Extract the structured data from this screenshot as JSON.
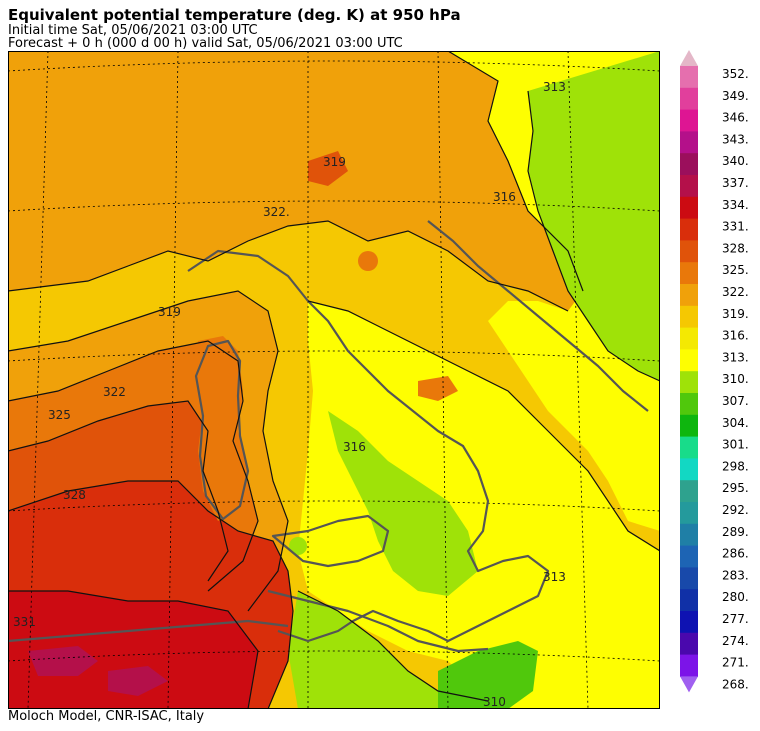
{
  "header": {
    "title": "Equivalent potential temperature (deg. K) at 950 hPa",
    "initial_time": "Initial time  Sat, 05/06/2021  03:00 UTC",
    "forecast": "Forecast  +   0 h  (000 d 00 h)  valid Sat, 05/06/2021 03:00 UTC"
  },
  "footer": {
    "credit": "Moloch Model, CNR-ISAC, Italy"
  },
  "colorbar": {
    "levels": [
      "352.",
      "349.",
      "346.",
      "343.",
      "340.",
      "337.",
      "334.",
      "331.",
      "328.",
      "325.",
      "322.",
      "319.",
      "316.",
      "313.",
      "310.",
      "307.",
      "304.",
      "301.",
      "298.",
      "295.",
      "292.",
      "289.",
      "286.",
      "283.",
      "280.",
      "277.",
      "274.",
      "271.",
      "268."
    ],
    "colors": [
      "#e4b7c8",
      "#e56fae",
      "#e13f9c",
      "#de1593",
      "#b4108a",
      "#9b0f5c",
      "#b4104a",
      "#cc0b12",
      "#d92e0b",
      "#e0530a",
      "#e9780a",
      "#f0a10a",
      "#f5c802",
      "#f4e902",
      "#fefe01",
      "#9fe208",
      "#50c80c",
      "#0eb60e",
      "#18dc8a",
      "#12d8c3",
      "#2ea28e",
      "#249a9c",
      "#1f7fa6",
      "#1d64b4",
      "#1849aa",
      "#1030a7",
      "#0e12b2",
      "#4a08ad",
      "#7c14e8",
      "#a060f0"
    ]
  },
  "map": {
    "contour_labels": [
      "313",
      "316",
      "319",
      "322",
      "325",
      "328",
      "331",
      "310",
      "322.",
      "319",
      "316",
      "313"
    ]
  }
}
